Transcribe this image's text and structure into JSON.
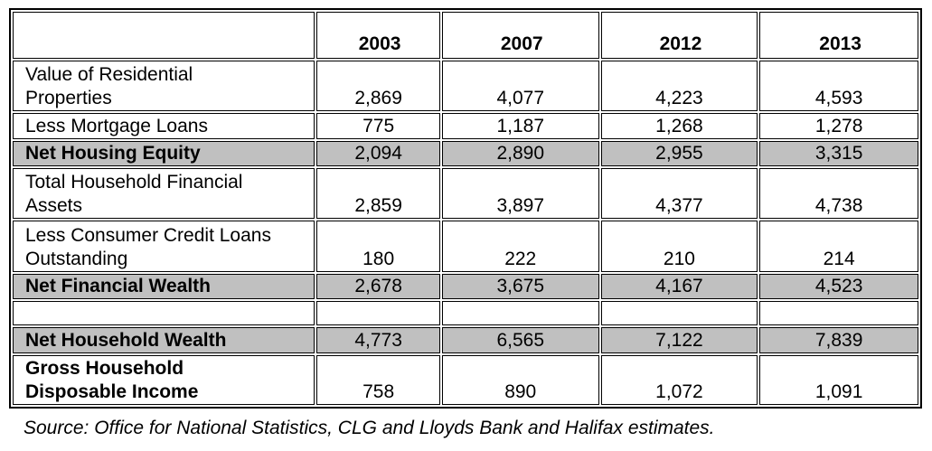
{
  "table": {
    "columns": [
      "",
      "2003",
      "2007",
      "2012",
      "2013"
    ],
    "rows": [
      {
        "label": "Value of Residential Properties",
        "values": [
          "2,869",
          "4,077",
          "4,223",
          "4,593"
        ]
      },
      {
        "label": "Less Mortgage Loans",
        "values": [
          "775",
          "1,187",
          "1,268",
          "1,278"
        ]
      },
      {
        "label": "Net Housing Equity",
        "values": [
          "2,094",
          "2,890",
          "2,955",
          "3,315"
        ]
      },
      {
        "label": "Total Household Financial Assets",
        "values": [
          "2,859",
          "3,897",
          "4,377",
          "4,738"
        ]
      },
      {
        "label": "Less Consumer Credit Loans Outstanding",
        "values": [
          "180",
          "222",
          "210",
          "214"
        ]
      },
      {
        "label": "Net Financial Wealth",
        "values": [
          "2,678",
          "3,675",
          "4,167",
          "4,523"
        ]
      },
      {
        "label": "",
        "values": [
          "",
          "",
          "",
          ""
        ]
      },
      {
        "label": "Net Household Wealth",
        "values": [
          "4,773",
          "6,565",
          "7,122",
          "7,839"
        ]
      },
      {
        "label": "Gross Household Disposable Income",
        "values": [
          "758",
          "890",
          "1,072",
          "1,091"
        ]
      }
    ]
  },
  "caption": "Source: Office for National Statistics, CLG and Lloyds Bank and Halifax estimates.",
  "colors": {
    "shade": "#c0c0c0"
  }
}
